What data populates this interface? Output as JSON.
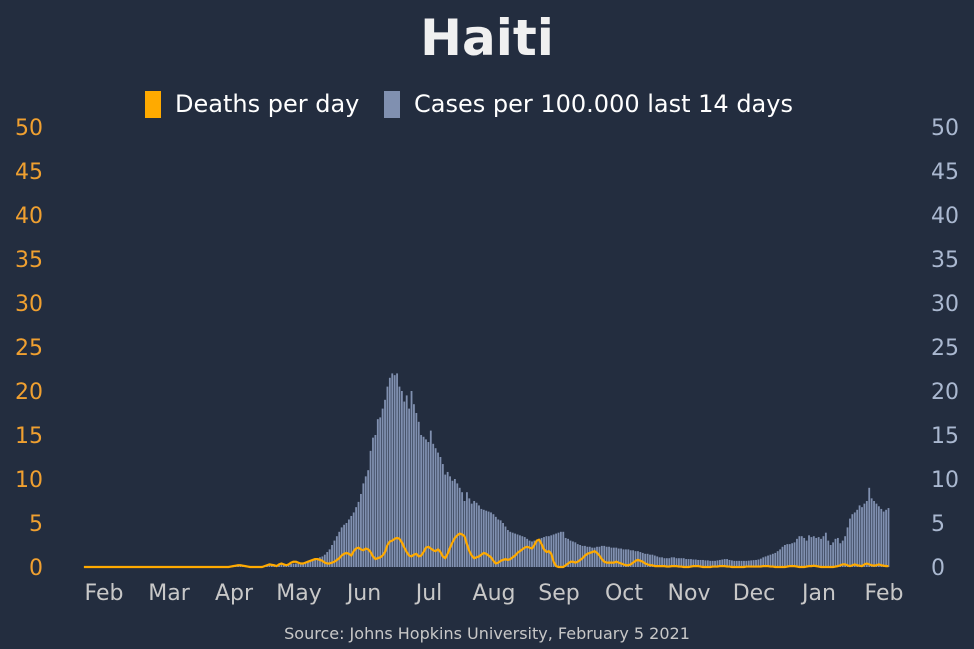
{
  "chart_data": {
    "type": "bar",
    "title": "Haiti",
    "source": "Source: Johns Hopkins University, February 5 2021",
    "legend": [
      "Deaths per day",
      "Cases per 100.000 last 14 days"
    ],
    "x_ticks": [
      "Feb",
      "Mar",
      "Apr",
      "May",
      "Jun",
      "Jul",
      "Aug",
      "Sep",
      "Oct",
      "Nov",
      "Dec",
      "Jan",
      "Feb"
    ],
    "y_left": {
      "ticks": [
        "0",
        "5",
        "10",
        "15",
        "20",
        "25",
        "30",
        "35",
        "40",
        "45",
        "50"
      ],
      "ylim": [
        0,
        50
      ]
    },
    "y_right": {
      "ticks": [
        "0",
        "5",
        "10",
        "15",
        "20",
        "25",
        "30",
        "35",
        "40",
        "45",
        "50"
      ],
      "ylim": [
        0,
        50
      ]
    },
    "series": [
      {
        "name": "Cases per 100.000 last 14 days",
        "kind": "bar",
        "values": [
          0,
          0,
          0,
          0,
          0,
          0,
          0,
          0,
          0,
          0,
          0,
          0,
          0,
          0,
          0,
          0,
          0,
          0,
          0,
          0,
          0,
          0,
          0,
          0,
          0,
          0,
          0,
          0,
          0,
          0,
          0,
          0,
          0,
          0,
          0,
          0,
          0,
          0,
          0,
          0,
          0,
          0,
          0,
          0,
          0,
          0,
          0,
          0,
          0,
          0,
          0,
          0,
          0,
          0,
          0,
          0,
          0,
          0,
          0,
          0,
          0,
          0.02,
          0.05,
          0.08,
          0.1,
          0.12,
          0.12,
          0.1,
          0.1,
          0.1,
          0.1,
          0.08,
          0.08,
          0.1,
          0.12,
          0.15,
          0.18,
          0.2,
          0.22,
          0.22,
          0.25,
          0.28,
          0.3,
          0.3,
          0.32,
          0.34,
          0.36,
          0.38,
          0.4,
          0.42,
          0.45,
          0.5,
          0.55,
          0.6,
          0.7,
          0.8,
          0.9,
          1.0,
          1.1,
          1.2,
          1.4,
          1.7,
          2.0,
          2.5,
          3.0,
          3.5,
          4.0,
          4.5,
          4.8,
          5.0,
          5.4,
          5.8,
          6.2,
          6.8,
          7.4,
          8.3,
          9.5,
          10.3,
          11.0,
          13.2,
          14.7,
          15.0,
          16.8,
          17.0,
          18.0,
          19.0,
          20.5,
          21.5,
          22.0,
          21.8,
          22.0,
          20.5,
          20.0,
          18.8,
          19.5,
          18.0,
          20.0,
          18.5,
          17.5,
          16.5,
          15.0,
          14.8,
          14.5,
          14.2,
          15.5,
          14.0,
          13.5,
          13.0,
          12.5,
          11.7,
          10.5,
          10.8,
          10.3,
          9.8,
          10.0,
          9.5,
          9.0,
          8.5,
          7.5,
          8.5,
          7.8,
          7.2,
          7.5,
          7.3,
          7.0,
          6.6,
          6.5,
          6.4,
          6.3,
          6.2,
          6.0,
          5.7,
          5.4,
          5.3,
          5.0,
          4.6,
          4.2,
          4.0,
          3.9,
          3.8,
          3.7,
          3.6,
          3.5,
          3.4,
          3.2,
          3.0,
          2.9,
          3.0,
          3.1,
          3.2,
          3.3,
          3.4,
          3.5,
          3.5,
          3.6,
          3.7,
          3.8,
          3.9,
          4.0,
          4.0,
          3.3,
          3.2,
          3.0,
          2.9,
          2.8,
          2.6,
          2.5,
          2.4,
          2.4,
          2.3,
          2.3,
          2.2,
          2.2,
          2.3,
          2.3,
          2.4,
          2.4,
          2.3,
          2.3,
          2.2,
          2.2,
          2.2,
          2.1,
          2.1,
          2.0,
          2.0,
          2.0,
          1.9,
          1.9,
          1.8,
          1.8,
          1.7,
          1.6,
          1.5,
          1.5,
          1.4,
          1.4,
          1.3,
          1.2,
          1.1,
          1.1,
          1.0,
          1.0,
          1.0,
          1.1,
          1.1,
          1.0,
          1.0,
          1.0,
          1.0,
          0.9,
          0.9,
          0.9,
          0.85,
          0.85,
          0.8,
          0.8,
          0.8,
          0.75,
          0.75,
          0.7,
          0.7,
          0.7,
          0.75,
          0.8,
          0.85,
          0.9,
          0.9,
          0.8,
          0.75,
          0.7,
          0.7,
          0.7,
          0.7,
          0.7,
          0.7,
          0.72,
          0.75,
          0.78,
          0.8,
          0.85,
          0.95,
          1.1,
          1.2,
          1.3,
          1.4,
          1.5,
          1.6,
          1.8,
          2.0,
          2.3,
          2.5,
          2.6,
          2.6,
          2.7,
          2.8,
          3.2,
          3.5,
          3.5,
          3.3,
          3.0,
          3.6,
          3.4,
          3.5,
          3.3,
          3.4,
          3.2,
          3.5,
          3.9,
          3.0,
          2.5,
          2.8,
          3.2,
          3.3,
          2.7,
          3.0,
          3.5,
          4.5,
          5.5,
          6.0,
          6.2,
          6.5,
          7.0,
          6.8,
          7.2,
          7.5,
          9.0,
          7.8,
          7.5,
          7.2,
          6.9,
          6.6,
          6.3,
          6.5,
          6.7
        ]
      },
      {
        "name": "Deaths per day",
        "kind": "line",
        "values": [
          0,
          0,
          0,
          0,
          0,
          0,
          0,
          0,
          0,
          0,
          0,
          0,
          0,
          0,
          0,
          0,
          0,
          0,
          0,
          0,
          0,
          0,
          0,
          0,
          0,
          0,
          0,
          0,
          0,
          0,
          0,
          0,
          0,
          0,
          0,
          0,
          0,
          0,
          0,
          0,
          0,
          0,
          0,
          0,
          0,
          0,
          0,
          0,
          0,
          0,
          0,
          0,
          0,
          0,
          0,
          0,
          0,
          0,
          0,
          0,
          0,
          0.05,
          0.1,
          0.15,
          0.2,
          0.2,
          0.15,
          0.1,
          0.05,
          0,
          0,
          0,
          0,
          0,
          0,
          0.1,
          0.2,
          0.3,
          0.25,
          0.2,
          0.1,
          0.3,
          0.4,
          0.3,
          0.2,
          0.3,
          0.5,
          0.6,
          0.6,
          0.5,
          0.4,
          0.4,
          0.5,
          0.6,
          0.7,
          0.8,
          0.9,
          0.9,
          0.8,
          0.7,
          0.5,
          0.4,
          0.4,
          0.5,
          0.6,
          0.8,
          1.0,
          1.3,
          1.5,
          1.6,
          1.5,
          1.3,
          1.8,
          2.1,
          2.2,
          2.0,
          1.9,
          2.1,
          2.0,
          1.7,
          1.2,
          0.9,
          1.0,
          1.1,
          1.3,
          1.7,
          2.5,
          2.9,
          3.0,
          3.2,
          3.3,
          3.2,
          2.8,
          2.2,
          1.7,
          1.3,
          1.2,
          1.4,
          1.5,
          1.2,
          1.3,
          1.7,
          2.2,
          2.3,
          2.1,
          1.9,
          1.8,
          2.0,
          1.7,
          1.2,
          1.0,
          1.5,
          2.2,
          2.8,
          3.3,
          3.6,
          3.8,
          3.7,
          3.5,
          2.6,
          1.8,
          1.3,
          1.0,
          1.1,
          1.2,
          1.4,
          1.6,
          1.5,
          1.3,
          1.1,
          0.7,
          0.4,
          0.5,
          0.7,
          0.8,
          0.9,
          0.8,
          0.9,
          1.1,
          1.3,
          1.6,
          1.8,
          2.0,
          2.2,
          2.3,
          2.2,
          2.1,
          2.5,
          3.0,
          3.1,
          2.6,
          2.0,
          1.7,
          1.8,
          1.5,
          0.6,
          0.1,
          0,
          0,
          0,
          0.2,
          0.4,
          0.6,
          0.6,
          0.5,
          0.6,
          0.8,
          1.0,
          1.3,
          1.5,
          1.6,
          1.7,
          1.8,
          1.6,
          1.3,
          0.9,
          0.6,
          0.5,
          0.5,
          0.5,
          0.5,
          0.6,
          0.5,
          0.4,
          0.3,
          0.2,
          0.2,
          0.3,
          0.5,
          0.7,
          0.8,
          0.7,
          0.6,
          0.4,
          0.3,
          0.2,
          0.2,
          0.1,
          0.1,
          0.1,
          0.1,
          0.1,
          0.05,
          0.05,
          0.1,
          0.1,
          0.1,
          0.05,
          0.05,
          0,
          0,
          0,
          0.05,
          0.1,
          0.1,
          0.1,
          0.05,
          0,
          0,
          0,
          0,
          0.05,
          0.05,
          0.05,
          0.1,
          0.1,
          0.1,
          0.05,
          0.05,
          0,
          0,
          0,
          0,
          0,
          0,
          0.05,
          0.05,
          0.05,
          0.05,
          0.05,
          0.05,
          0.05,
          0.1,
          0.1,
          0.1,
          0.05,
          0.05,
          0,
          0,
          0,
          0,
          0,
          0.05,
          0.1,
          0.1,
          0.1,
          0.05,
          0,
          0,
          0,
          0.05,
          0.1,
          0.1,
          0.15,
          0.1,
          0.05,
          0,
          0,
          0,
          0,
          0,
          0,
          0.05,
          0.1,
          0.2,
          0.3,
          0.3,
          0.2,
          0.1,
          0.2,
          0.3,
          0.2,
          0.15,
          0.1,
          0.3,
          0.4,
          0.3,
          0.2,
          0.15,
          0.2,
          0.3,
          0.2,
          0.15,
          0.1,
          0.1
        ]
      }
    ],
    "colors": {
      "deaths": "#ffaa00",
      "cases": "#8090b0",
      "background": "#232d3f"
    }
  }
}
